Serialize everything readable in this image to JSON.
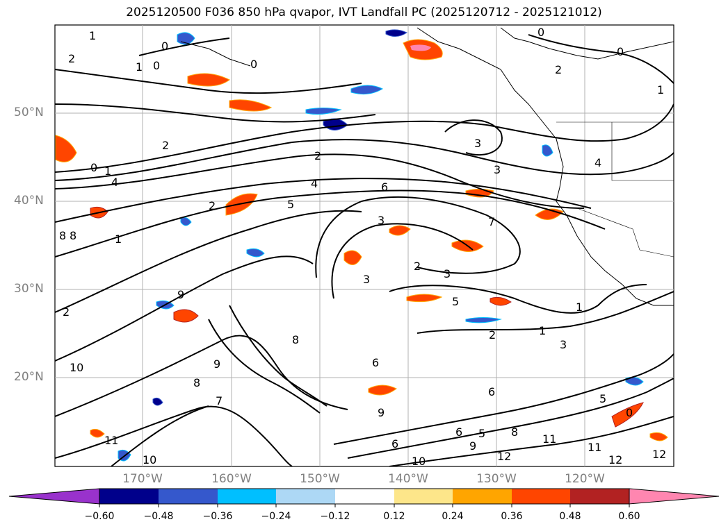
{
  "title": "2025120500 F036 850 hPa qvapor, IVT Landfall PC (2025120712 - 2025121012)",
  "map": {
    "lat_labels": [
      "50°N",
      "40°N",
      "30°N",
      "20°N"
    ],
    "lon_labels": [
      "170°W",
      "160°W",
      "150°W",
      "140°W",
      "130°W",
      "120°W"
    ],
    "contour_labels": [
      "1",
      "2",
      "0",
      "1",
      "0",
      "0",
      "2",
      "0",
      "0",
      "2",
      "1",
      "0",
      "1",
      "4",
      "2",
      "2",
      "3",
      "4",
      "3",
      "5",
      "6",
      "3",
      "7",
      "3",
      "2",
      "3",
      "5",
      "9",
      "8",
      "8",
      "2",
      "1",
      "10",
      "9",
      "8",
      "7",
      "8",
      "6",
      "9",
      "6",
      "2",
      "3",
      "1",
      "1",
      "6",
      "9",
      "5",
      "8",
      "11",
      "10",
      "12",
      "11",
      "6",
      "10",
      "12",
      "11",
      "12",
      "5",
      "4",
      "0"
    ]
  },
  "colorbar": {
    "colors": [
      "#9932cc",
      "#00008b",
      "#3558cc",
      "#00bfff",
      "#add8f5",
      "#ffffff",
      "#fde68a",
      "#ffa500",
      "#ff4500",
      "#b22222",
      "#ff86b0"
    ],
    "tick_labels": [
      "−0.60",
      "−0.48",
      "−0.36",
      "−0.24",
      "−0.12",
      "0.12",
      "0.24",
      "0.36",
      "0.48",
      "0.60"
    ]
  }
}
